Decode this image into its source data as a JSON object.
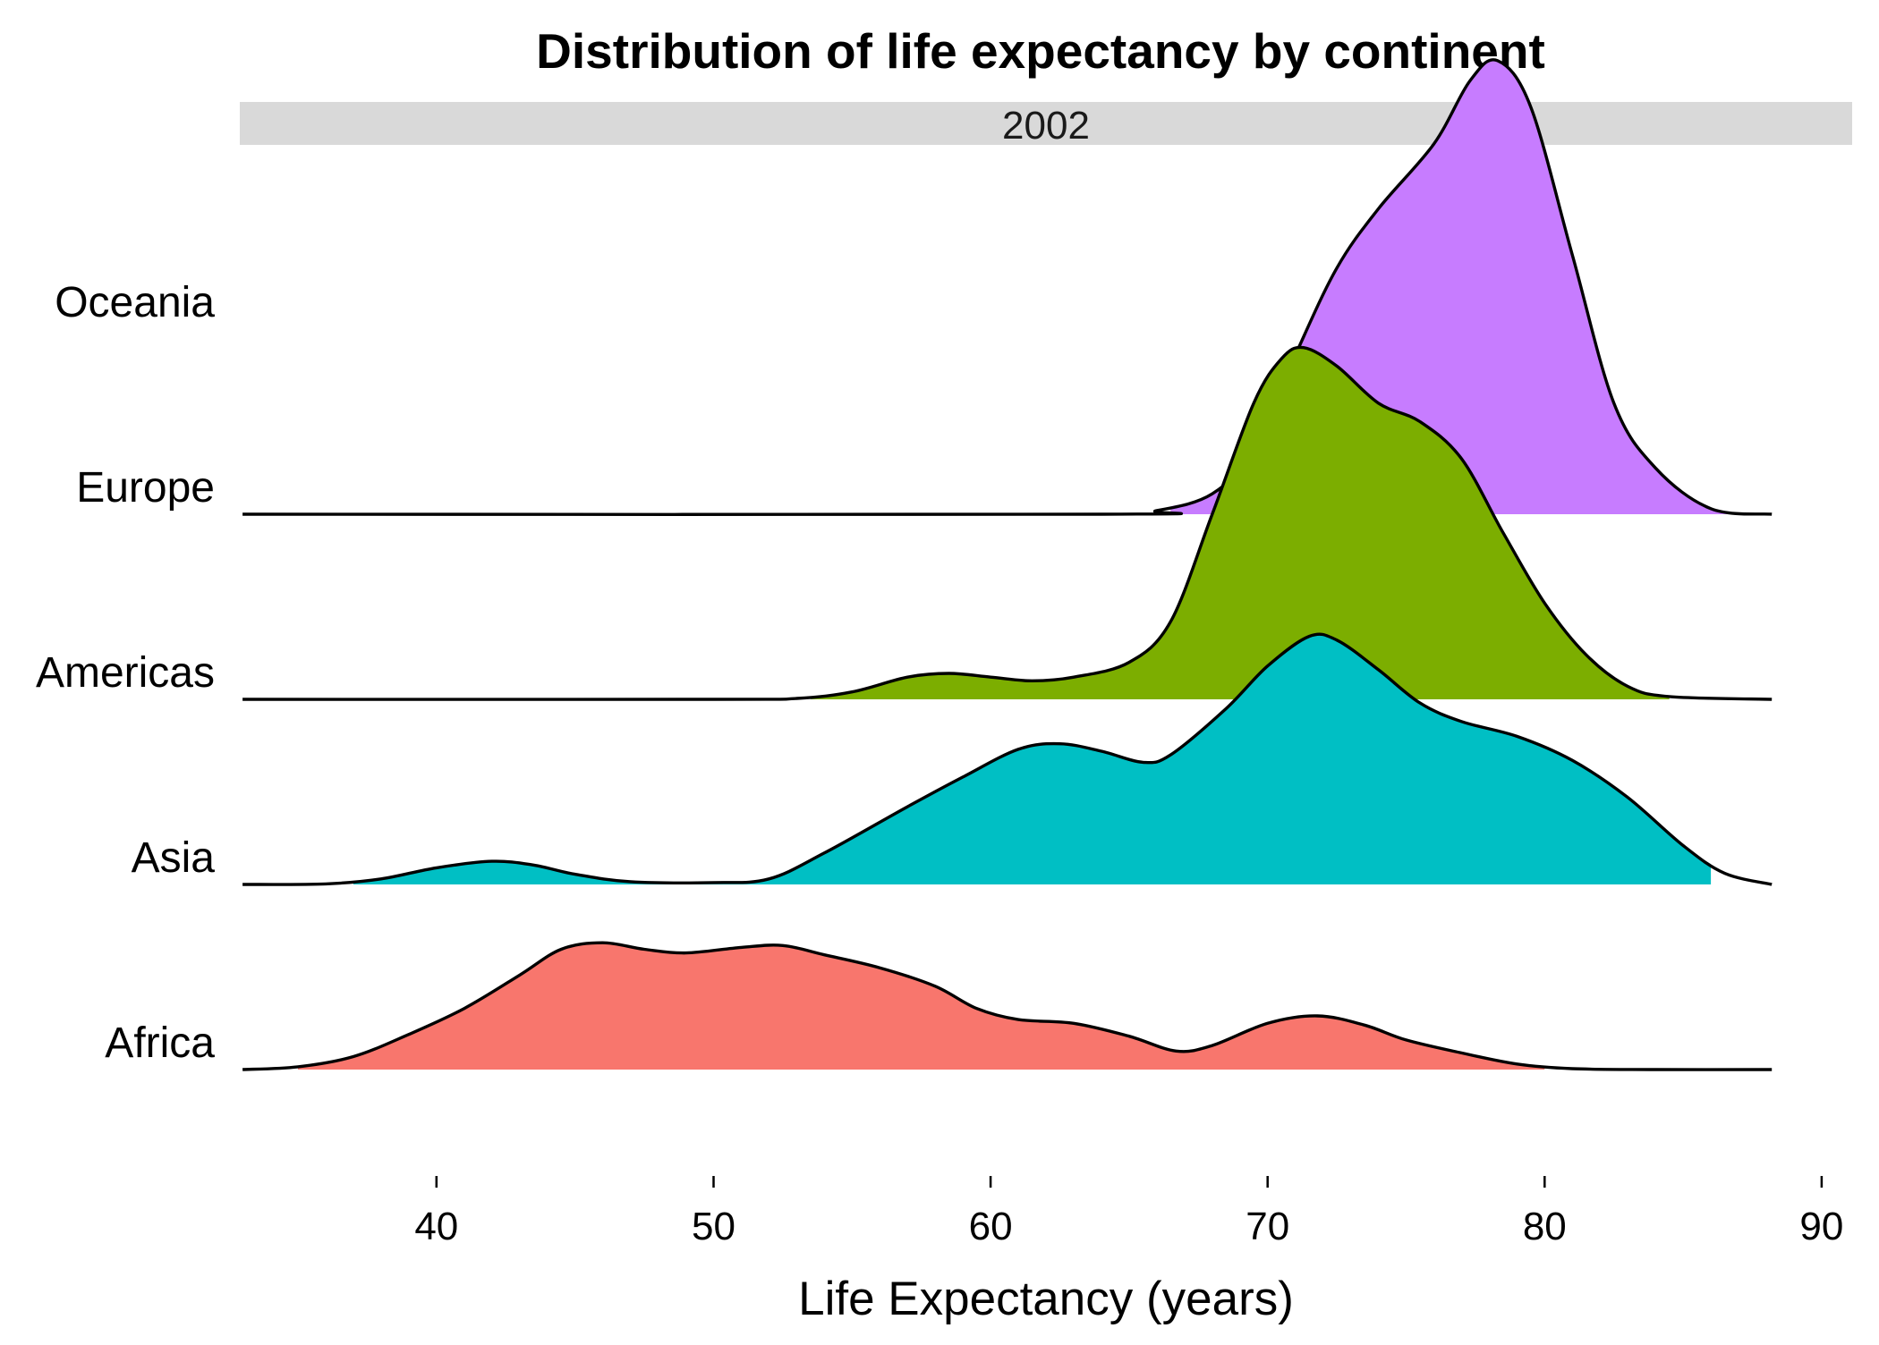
{
  "chart_data": {
    "type": "ridgeline",
    "title": "Distribution of life expectancy by continent",
    "facet": "2002",
    "xlabel": "Life Expectancy (years)",
    "ylabel": "",
    "xlim": [
      32.9,
      91.1
    ],
    "x_ticks": [
      40,
      50,
      60,
      70,
      80,
      90
    ],
    "x_tick_labels": [
      "40",
      "50",
      "60",
      "70",
      "80",
      "90"
    ],
    "categories": [
      "Africa",
      "Asia",
      "Americas",
      "Europe",
      "Oceania"
    ],
    "density_range": [
      33,
      88.2
    ],
    "grid": false,
    "legend": "none",
    "series": [
      {
        "name": "Africa",
        "color": "#F8766D",
        "fill_range": [
          35,
          80
        ],
        "points": [
          [
            33,
            0.0
          ],
          [
            35,
            0.015
          ],
          [
            37,
            0.07
          ],
          [
            39,
            0.19
          ],
          [
            41,
            0.33
          ],
          [
            43,
            0.51
          ],
          [
            44.5,
            0.65
          ],
          [
            46,
            0.685
          ],
          [
            47.5,
            0.65
          ],
          [
            49,
            0.63
          ],
          [
            51,
            0.66
          ],
          [
            52.5,
            0.67
          ],
          [
            54,
            0.62
          ],
          [
            56,
            0.55
          ],
          [
            58,
            0.45
          ],
          [
            59.5,
            0.33
          ],
          [
            61,
            0.27
          ],
          [
            63,
            0.25
          ],
          [
            65,
            0.18
          ],
          [
            66.7,
            0.1
          ],
          [
            68,
            0.13
          ],
          [
            70,
            0.25
          ],
          [
            71.8,
            0.29
          ],
          [
            73.5,
            0.24
          ],
          [
            75,
            0.16
          ],
          [
            77,
            0.09
          ],
          [
            79,
            0.03
          ],
          [
            81,
            0.005
          ],
          [
            84,
            0.0
          ],
          [
            88.2,
            0.0
          ]
        ]
      },
      {
        "name": "Asia",
        "color": "#00BFC4",
        "fill_range": [
          37,
          86
        ],
        "points": [
          [
            33,
            0.0
          ],
          [
            36,
            0.003
          ],
          [
            38,
            0.03
          ],
          [
            40,
            0.09
          ],
          [
            42,
            0.125
          ],
          [
            43.5,
            0.105
          ],
          [
            45,
            0.055
          ],
          [
            47,
            0.015
          ],
          [
            50,
            0.01
          ],
          [
            52,
            0.03
          ],
          [
            54,
            0.17
          ],
          [
            57,
            0.42
          ],
          [
            59,
            0.58
          ],
          [
            61,
            0.73
          ],
          [
            62.5,
            0.76
          ],
          [
            64,
            0.72
          ],
          [
            65.5,
            0.66
          ],
          [
            66.5,
            0.7
          ],
          [
            68.5,
            0.95
          ],
          [
            70,
            1.18
          ],
          [
            71.5,
            1.34
          ],
          [
            72.5,
            1.32
          ],
          [
            74,
            1.16
          ],
          [
            75.5,
            0.98
          ],
          [
            77,
            0.88
          ],
          [
            79,
            0.8
          ],
          [
            81,
            0.67
          ],
          [
            83,
            0.47
          ],
          [
            85,
            0.21
          ],
          [
            86.5,
            0.06
          ],
          [
            88.2,
            0.0
          ]
        ]
      },
      {
        "name": "Americas",
        "color": "#7CAE00",
        "fill_range": [
          53.5,
          84.5
        ],
        "points": [
          [
            33,
            0.0
          ],
          [
            50,
            0.0
          ],
          [
            53,
            0.005
          ],
          [
            55,
            0.04
          ],
          [
            57,
            0.12
          ],
          [
            58.5,
            0.14
          ],
          [
            60,
            0.12
          ],
          [
            61.5,
            0.1
          ],
          [
            63,
            0.12
          ],
          [
            65,
            0.2
          ],
          [
            66.5,
            0.42
          ],
          [
            68,
            1.0
          ],
          [
            69.5,
            1.6
          ],
          [
            70.5,
            1.84
          ],
          [
            71.3,
            1.9
          ],
          [
            72.5,
            1.8
          ],
          [
            74,
            1.6
          ],
          [
            75.5,
            1.5
          ],
          [
            77,
            1.3
          ],
          [
            78.5,
            0.9
          ],
          [
            80,
            0.52
          ],
          [
            81.5,
            0.24
          ],
          [
            83,
            0.07
          ],
          [
            84.5,
            0.015
          ],
          [
            88.2,
            0.0
          ]
        ]
      },
      {
        "name": "Europe",
        "color": "#C77CFF",
        "fill_range": [
          66.5,
          88
        ],
        "points": [
          [
            33,
            0.0
          ],
          [
            64,
            0.0
          ],
          [
            66,
            0.02
          ],
          [
            68,
            0.11
          ],
          [
            69.5,
            0.35
          ],
          [
            71,
            0.86
          ],
          [
            72.5,
            1.33
          ],
          [
            74,
            1.65
          ],
          [
            76,
            2.0
          ],
          [
            77.3,
            2.34
          ],
          [
            78.3,
            2.45
          ],
          [
            79.5,
            2.2
          ],
          [
            81,
            1.4
          ],
          [
            82.5,
            0.6
          ],
          [
            84,
            0.25
          ],
          [
            86,
            0.03
          ],
          [
            88.2,
            0.0
          ]
        ]
      },
      {
        "name": "Oceania",
        "color": "#000000",
        "fill_range": [],
        "points": []
      }
    ]
  }
}
